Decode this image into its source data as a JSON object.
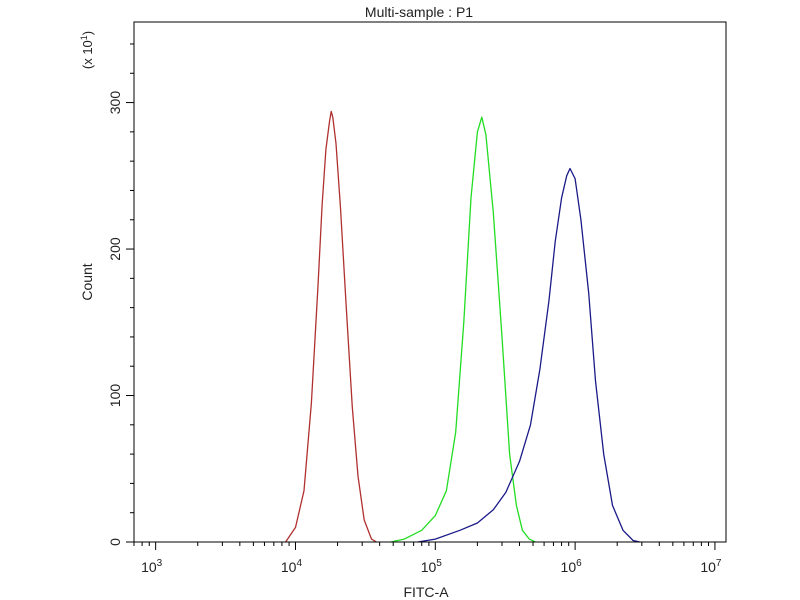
{
  "chart_data": {
    "type": "line",
    "title": "Multi-sample : P1",
    "xlabel": "FITC-A",
    "ylabel": "Count",
    "y_multiplier_label": "(x 10^1)",
    "x_scale": "log",
    "xlim": [
      700,
      12000000
    ],
    "ylim": [
      0,
      355
    ],
    "x_ticks": [
      {
        "value": 1000,
        "base": "10",
        "exp": "3"
      },
      {
        "value": 10000,
        "base": "10",
        "exp": "4"
      },
      {
        "value": 100000,
        "base": "10",
        "exp": "5"
      },
      {
        "value": 1000000,
        "base": "10",
        "exp": "6"
      },
      {
        "value": 10000000,
        "base": "10",
        "exp": "7"
      }
    ],
    "y_ticks": [
      0,
      100,
      200,
      300
    ],
    "grid": false,
    "series": [
      {
        "color": "#b03030",
        "points": [
          [
            8500,
            0
          ],
          [
            10000,
            10
          ],
          [
            11500,
            35
          ],
          [
            13000,
            95
          ],
          [
            14500,
            175
          ],
          [
            15500,
            230
          ],
          [
            16500,
            268
          ],
          [
            17500,
            287
          ],
          [
            18000,
            294
          ],
          [
            18500,
            290
          ],
          [
            19500,
            272
          ],
          [
            21000,
            228
          ],
          [
            23000,
            162
          ],
          [
            25500,
            92
          ],
          [
            28000,
            45
          ],
          [
            31000,
            15
          ],
          [
            35000,
            2
          ],
          [
            38000,
            0
          ]
        ]
      },
      {
        "color": "#22dd22",
        "points": [
          [
            48000,
            0
          ],
          [
            60000,
            2
          ],
          [
            80000,
            8
          ],
          [
            100000,
            18
          ],
          [
            120000,
            35
          ],
          [
            140000,
            75
          ],
          [
            160000,
            150
          ],
          [
            180000,
            235
          ],
          [
            200000,
            280
          ],
          [
            215000,
            290
          ],
          [
            230000,
            278
          ],
          [
            260000,
            225
          ],
          [
            300000,
            140
          ],
          [
            340000,
            60
          ],
          [
            380000,
            25
          ],
          [
            420000,
            8
          ],
          [
            470000,
            2
          ],
          [
            520000,
            0
          ]
        ]
      },
      {
        "color": "#1a1a88",
        "points": [
          [
            75000,
            0
          ],
          [
            100000,
            2
          ],
          [
            150000,
            8
          ],
          [
            200000,
            13
          ],
          [
            260000,
            22
          ],
          [
            320000,
            34
          ],
          [
            400000,
            55
          ],
          [
            480000,
            80
          ],
          [
            560000,
            118
          ],
          [
            650000,
            165
          ],
          [
            720000,
            205
          ],
          [
            800000,
            235
          ],
          [
            870000,
            250
          ],
          [
            920000,
            255
          ],
          [
            1000000,
            248
          ],
          [
            1100000,
            220
          ],
          [
            1250000,
            170
          ],
          [
            1400000,
            110
          ],
          [
            1600000,
            60
          ],
          [
            1850000,
            25
          ],
          [
            2200000,
            8
          ],
          [
            2600000,
            1
          ],
          [
            2900000,
            0
          ]
        ]
      }
    ]
  }
}
